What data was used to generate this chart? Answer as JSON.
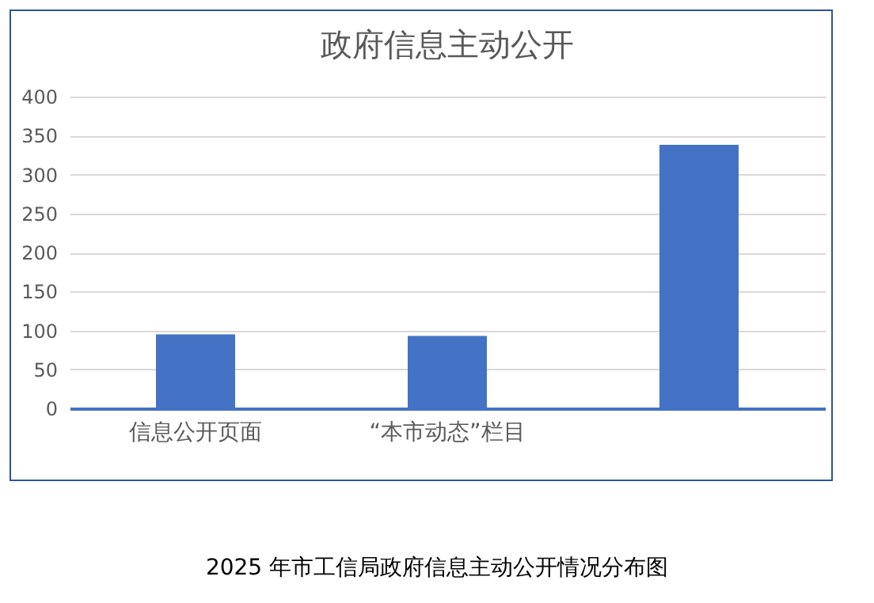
{
  "chart_data": {
    "type": "bar",
    "title": "政府信息主动公开",
    "categories": [
      "信息公开页面",
      "“本市动态”栏目",
      null
    ],
    "values": [
      95,
      93,
      338
    ],
    "color": "#4472c4",
    "ylim": [
      0,
      400
    ],
    "yticks": [
      0,
      50,
      100,
      150,
      200,
      250,
      300,
      350,
      400
    ],
    "grid": "y",
    "annotations": [
      "2025 年市工信局政府信息主动公开情况分布图"
    ]
  }
}
